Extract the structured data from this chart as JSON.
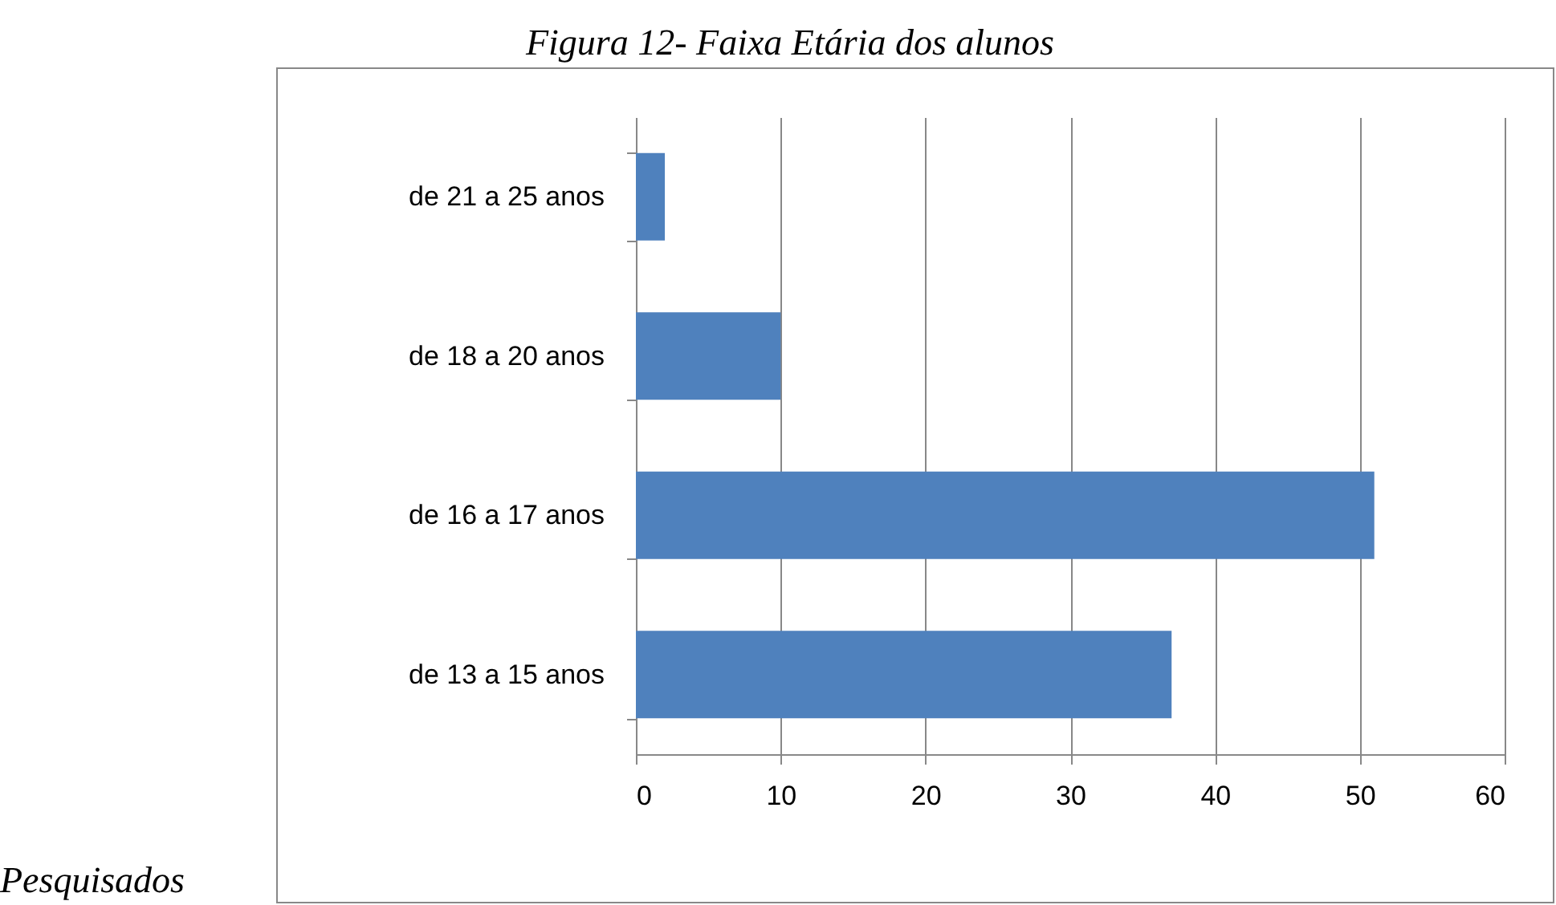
{
  "chart_data": {
    "type": "bar",
    "orientation": "horizontal",
    "title": "Figura 12- Faixa Etária dos alunos",
    "categories": [
      "de 21 a 25 anos",
      "de 18 a 20 anos",
      "de 16 a 17 anos",
      "de 13 a 15 anos"
    ],
    "values": [
      2,
      10,
      51,
      37
    ],
    "color": "#4f81bd",
    "xlim": [
      0,
      60
    ],
    "xticks": [
      0,
      10,
      20,
      30,
      40,
      50,
      60
    ],
    "grid": "x",
    "annotations": [
      "Pesquisados"
    ]
  }
}
